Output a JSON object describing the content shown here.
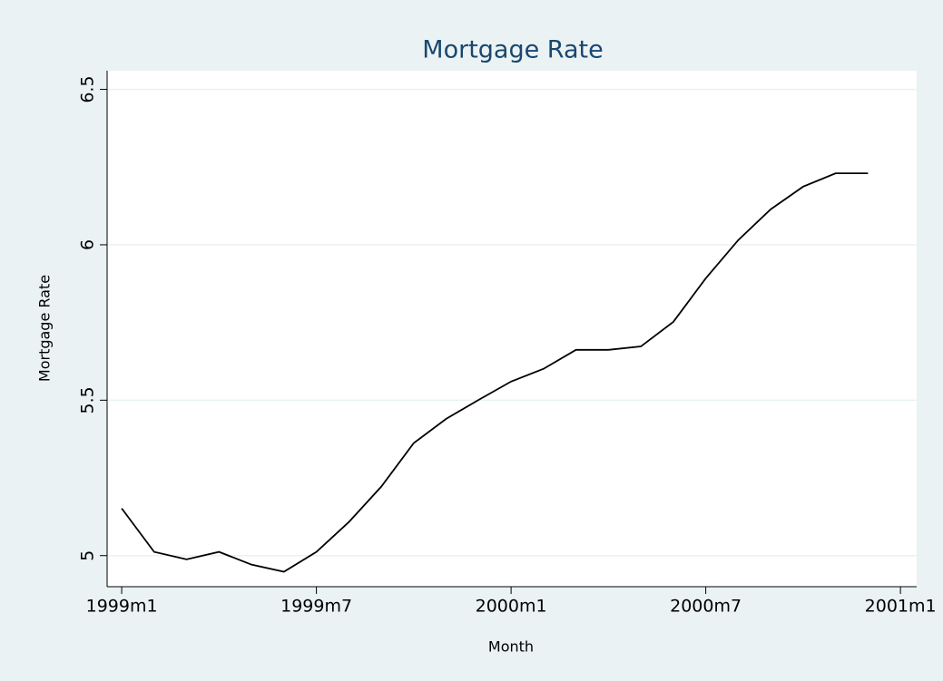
{
  "chart_data": {
    "type": "line",
    "title": "Mortgage Rate",
    "x_label": "Month",
    "y_label": "Mortgage Rate",
    "x": [
      468,
      469,
      470,
      471,
      472,
      473,
      474,
      475,
      476,
      477,
      478,
      479,
      480,
      481,
      482,
      483,
      484,
      485,
      486,
      487,
      488,
      489,
      490,
      491
    ],
    "values": [
      5.152,
      5.012,
      4.988,
      5.012,
      4.971,
      4.948,
      5.012,
      5.108,
      5.222,
      5.362,
      5.44,
      5.501,
      5.56,
      5.601,
      5.662,
      5.662,
      5.673,
      5.752,
      5.892,
      6.015,
      6.114,
      6.187,
      6.23,
      6.23
    ],
    "color": "#000000",
    "xlim": [
      467.55,
      492.5
    ],
    "xticks": [
      {
        "value": 468,
        "label": "1999m1"
      },
      {
        "value": 474,
        "label": "1999m7"
      },
      {
        "value": 480,
        "label": "2000m1"
      },
      {
        "value": 486,
        "label": "2000m7"
      },
      {
        "value": 492,
        "label": "2001m1"
      }
    ],
    "ylim": [
      4.9,
      6.56
    ],
    "yticks": [
      5,
      5.5,
      6,
      6.5
    ],
    "grid": true
  }
}
